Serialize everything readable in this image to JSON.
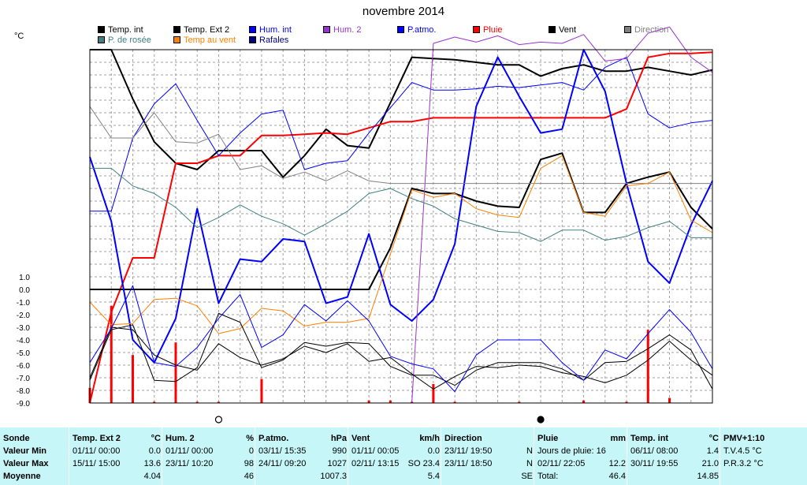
{
  "chart_data": {
    "type": "line",
    "title": "novembre 2014",
    "ylabel": "°C",
    "y_tick_labels": [
      "1.0",
      "0.0",
      "-1.0",
      "-2.0",
      "-3.0",
      "-4.0",
      "-5.0",
      "-6.0",
      "-7.0",
      "-8.0",
      "-9.0"
    ],
    "ylim": [
      -9,
      19
    ],
    "x": [
      1,
      2,
      3,
      4,
      5,
      6,
      7,
      8,
      9,
      10,
      11,
      12,
      13,
      14,
      15,
      16,
      17,
      18,
      19,
      20,
      21,
      22,
      23,
      24,
      25,
      26,
      27,
      28,
      29,
      30
    ],
    "grid": true,
    "legend_position": "top",
    "legend": [
      {
        "label": "Temp. int",
        "color": "#000000"
      },
      {
        "label": "Temp. Ext 2",
        "color": "#000000"
      },
      {
        "label": "Hum. int",
        "color": "#0000ff"
      },
      {
        "label": "Hum. 2",
        "color": "#9933cc"
      },
      {
        "label": "P.atmo.",
        "color": "#0000ff"
      },
      {
        "label": "Pluie",
        "color": "#ff0000"
      },
      {
        "label": "Vent",
        "color": "#000000"
      },
      {
        "label": "Direction",
        "color": "#808080"
      },
      {
        "label": "P. de rosée",
        "color": "#408080"
      },
      {
        "label": "Temp au vent",
        "color": "#ff8000"
      },
      {
        "label": "Rafales",
        "color": "#000080"
      }
    ],
    "series": [
      {
        "name": "Vent",
        "color": "#000000",
        "width": 2,
        "values": [
          19,
          19,
          15.1,
          11.7,
          10,
          9.5,
          11,
          11,
          11,
          8.9,
          10.6,
          12.7,
          11.4,
          11.2,
          14.8,
          18.4,
          18.3,
          18.2,
          18,
          17.8,
          17.8,
          16.9,
          17.5,
          17.8,
          17.3,
          17.3,
          17.6,
          17.3,
          17,
          17.4
        ]
      },
      {
        "name": "Pluie",
        "color": "#ff0000",
        "width": 2,
        "values": [
          -9,
          -1.8,
          2.5,
          2.5,
          10,
          10,
          10.6,
          10.6,
          12.2,
          12.2,
          12.3,
          12.4,
          12.3,
          12.8,
          13.3,
          13.3,
          13.6,
          13.6,
          13.6,
          13.6,
          13.6,
          13.6,
          13.6,
          13.6,
          13.6,
          14.3,
          18.4,
          18.7,
          18.7,
          18.8
        ]
      },
      {
        "name": "Temp. Ext 2",
        "color": "#000000",
        "width": 2,
        "values": [
          0,
          0,
          0,
          0,
          0,
          0,
          0,
          0,
          0,
          0,
          0,
          0,
          0,
          0,
          3.3,
          8,
          7.6,
          7.6,
          7,
          6.6,
          6.5,
          10.3,
          10.8,
          6.1,
          6.1,
          8.4,
          8.9,
          9.3,
          6.5,
          4.8
        ]
      },
      {
        "name": "P.atmo.",
        "color": "#0000ff",
        "width": 2,
        "values": [
          10.5,
          5.4,
          -4,
          -5.8,
          -2.3,
          6.4,
          -1.1,
          2.4,
          2.2,
          4,
          3.8,
          -1.1,
          -0.6,
          4.4,
          -1.2,
          -2.5,
          -0.8,
          3.6,
          14.5,
          18.4,
          15.3,
          12.4,
          12.7,
          19,
          15.7,
          8.4,
          2.2,
          0.5,
          5.1,
          8.6
        ]
      },
      {
        "name": "Hum. int",
        "color": "#0000ff",
        "width": 1,
        "values": [
          6.2,
          6.2,
          12,
          14.7,
          16.3,
          13.4,
          10.6,
          12.4,
          13.9,
          14.2,
          9.5,
          10,
          10.2,
          12.4,
          14.4,
          16.4,
          15.8,
          15.8,
          15.9,
          16.1,
          16,
          16.2,
          16.4,
          15.8,
          17.6,
          18.4,
          13.9,
          12.8,
          13.2,
          13.4
        ]
      },
      {
        "name": "Hum. 2",
        "color": "#9933cc",
        "width": 1,
        "values": [
          -9,
          -9,
          -9,
          -9,
          -9,
          -9,
          -9,
          -9,
          -9,
          -9,
          -9,
          -9,
          -9,
          -9,
          -9,
          -9,
          19.5,
          20,
          19.6,
          20.1,
          19.4,
          19.6,
          19.5,
          20.2,
          18.1,
          18.3,
          20.3,
          20.8,
          18.4,
          17.2
        ]
      },
      {
        "name": "Direction",
        "color": "#808080",
        "width": 1,
        "values": [
          14.5,
          12,
          12,
          14,
          11.7,
          11.6,
          12.3,
          9.5,
          9.8,
          8.8,
          9.3,
          8.6,
          9.4,
          8.6,
          8.4,
          8.4,
          8.4,
          8.4,
          8.4,
          8.4,
          8.4,
          8.4,
          8.4,
          8.4,
          8.4,
          8.4,
          8.4,
          8.4,
          8.4,
          8.4
        ]
      },
      {
        "name": "P. de rosée",
        "color": "#408080",
        "width": 1,
        "values": [
          9.6,
          9.6,
          8.2,
          7.6,
          6.5,
          4.9,
          5.7,
          6.7,
          5.8,
          5.2,
          4.3,
          5.2,
          6.2,
          7.6,
          8,
          7.2,
          6.6,
          5.6,
          5.1,
          4.6,
          4.5,
          3.8,
          4.7,
          4.7,
          3.9,
          4.2,
          4.9,
          5.4,
          4.1,
          4.1
        ]
      },
      {
        "name": "Temp au vent",
        "color": "#ff8000",
        "width": 1,
        "values": [
          -1,
          -2.8,
          -2.7,
          -0.8,
          -0.7,
          -1.3,
          -3.5,
          -3.1,
          -1.5,
          -1.7,
          -2.9,
          -2.6,
          -2.6,
          -2.3,
          2.8,
          7.9,
          7.3,
          7.6,
          6.4,
          5.9,
          5.7,
          9.6,
          10.6,
          6.1,
          5.8,
          8.2,
          8.4,
          9.3,
          5.5,
          4.5
        ]
      },
      {
        "name": "Rafales",
        "color": "#000000",
        "width": 1,
        "values": [
          -7,
          -3,
          -3.2,
          -5.2,
          -6,
          -6.4,
          -4.3,
          -5.4,
          -6,
          -5.5,
          -4.5,
          -5,
          -4.3,
          -5.7,
          -5.4,
          -6.7,
          -7.9,
          -6.9,
          -6.1,
          -6.2,
          -6,
          -6.1,
          -6.6,
          -6.9,
          -7.4,
          -6.8,
          -5.6,
          -4.1,
          -5.6,
          -6.8
        ]
      },
      {
        "name": "Temp. int",
        "color": "#000000",
        "width": 1,
        "values": [
          -7.2,
          -3.2,
          -2.8,
          -7.2,
          -7.3,
          -6.2,
          -1.9,
          -2.6,
          -6.2,
          -5.6,
          -4.2,
          -4.5,
          -4.2,
          -4.3,
          -6.1,
          -6.8,
          -6.8,
          -7.6,
          -6.4,
          -5.8,
          -5.8,
          -5.8,
          -6.3,
          -7.2,
          -5.8,
          -5.7,
          -4.7,
          -3.6,
          -4.8,
          -7.9
        ]
      },
      {
        "name": "Rafales 2",
        "color": "#0000ff",
        "width": 1,
        "values": [
          -5.8,
          -3.1,
          0.3,
          -5.8,
          -6.1,
          -4.6,
          -2.3,
          -0.4,
          -4.6,
          -3.6,
          -1.2,
          -2.5,
          -0.9,
          -2.5,
          -5.3,
          -5.9,
          -6.3,
          -8.1,
          -5.2,
          -4,
          -4,
          -4,
          -5.8,
          -7.2,
          -4.8,
          -5.5,
          -3.5,
          -1.6,
          -3.4,
          -6.3
        ]
      }
    ],
    "rain_bars": [
      {
        "x": 1,
        "value": -7.8
      },
      {
        "x": 2,
        "value": -1.3
      },
      {
        "x": 3,
        "value": -5.2
      },
      {
        "x": 4,
        "value": -8.9
      },
      {
        "x": 5,
        "value": -4.2
      },
      {
        "x": 6,
        "value": -8.9
      },
      {
        "x": 7,
        "value": -8.9
      },
      {
        "x": 9,
        "value": -7.1
      },
      {
        "x": 14,
        "value": -8.8
      },
      {
        "x": 15,
        "value": -8.8
      },
      {
        "x": 16,
        "value": -8.9
      },
      {
        "x": 17,
        "value": -7.5
      },
      {
        "x": 18,
        "value": -8.9
      },
      {
        "x": 21,
        "value": -8.9
      },
      {
        "x": 24,
        "value": -8.8
      },
      {
        "x": 26,
        "value": -8.9
      },
      {
        "x": 27,
        "value": -3.2
      },
      {
        "x": 28,
        "value": -8.6
      }
    ],
    "moon_markers": [
      {
        "x": 7,
        "phase": "full"
      },
      {
        "x": 22,
        "phase": "new"
      }
    ]
  },
  "summary": {
    "row_labels": {
      "title": "Sonde",
      "min": "Valeur Min",
      "max": "Valeur Max",
      "avg": "Moyenne"
    },
    "columns": [
      {
        "name": "Temp. Ext 2",
        "unit": "°C",
        "min_date": "01/11/ 00:00",
        "min_val": "0.0",
        "max_date": "15/11/ 15:00",
        "max_val": "13.6",
        "avg": "4.04"
      },
      {
        "name": "Hum. 2",
        "unit": "%",
        "min_date": "01/11/ 00:00",
        "min_val": "0",
        "max_date": "23/11/ 10:20",
        "max_val": "98",
        "avg": "46"
      },
      {
        "name": "P.atmo.",
        "unit": "hPa",
        "min_date": "03/11/ 15:35",
        "min_val": "990",
        "max_date": "24/11/ 09:20",
        "max_val": "1027",
        "avg": "1007.3"
      },
      {
        "name": "Vent",
        "unit": "km/h",
        "min_date": "01/11/ 00:05",
        "min_val": "0.0",
        "max_date": "02/11/ 13:15",
        "max_val": "SO 23.4",
        "avg": "5.4"
      },
      {
        "name": "Direction",
        "unit": "",
        "min_date": "23/11/ 19:50",
        "min_val": "N",
        "max_date": "23/11/ 18:50",
        "max_val": "N",
        "avg": "SE"
      },
      {
        "name": "Pluie",
        "unit": "mm",
        "min_date": "Jours de pluie: 16",
        "min_val": "",
        "max_date": "02/11/ 22:05",
        "max_val": "12.2",
        "avg_label": "Total:",
        "avg": "46.4"
      },
      {
        "name": "Temp. int",
        "unit": "°C",
        "min_date": "06/11/ 08:00",
        "min_val": "1.4",
        "max_date": "30/11/ 19:55",
        "max_val": "21.0",
        "avg": "14.85"
      },
      {
        "name": "PMV+1:10",
        "unit": "",
        "min_date": "T.V.4.5 °C",
        "min_val": "",
        "max_date": "P.R.3.2 °C",
        "max_val": "",
        "avg": ""
      }
    ]
  }
}
